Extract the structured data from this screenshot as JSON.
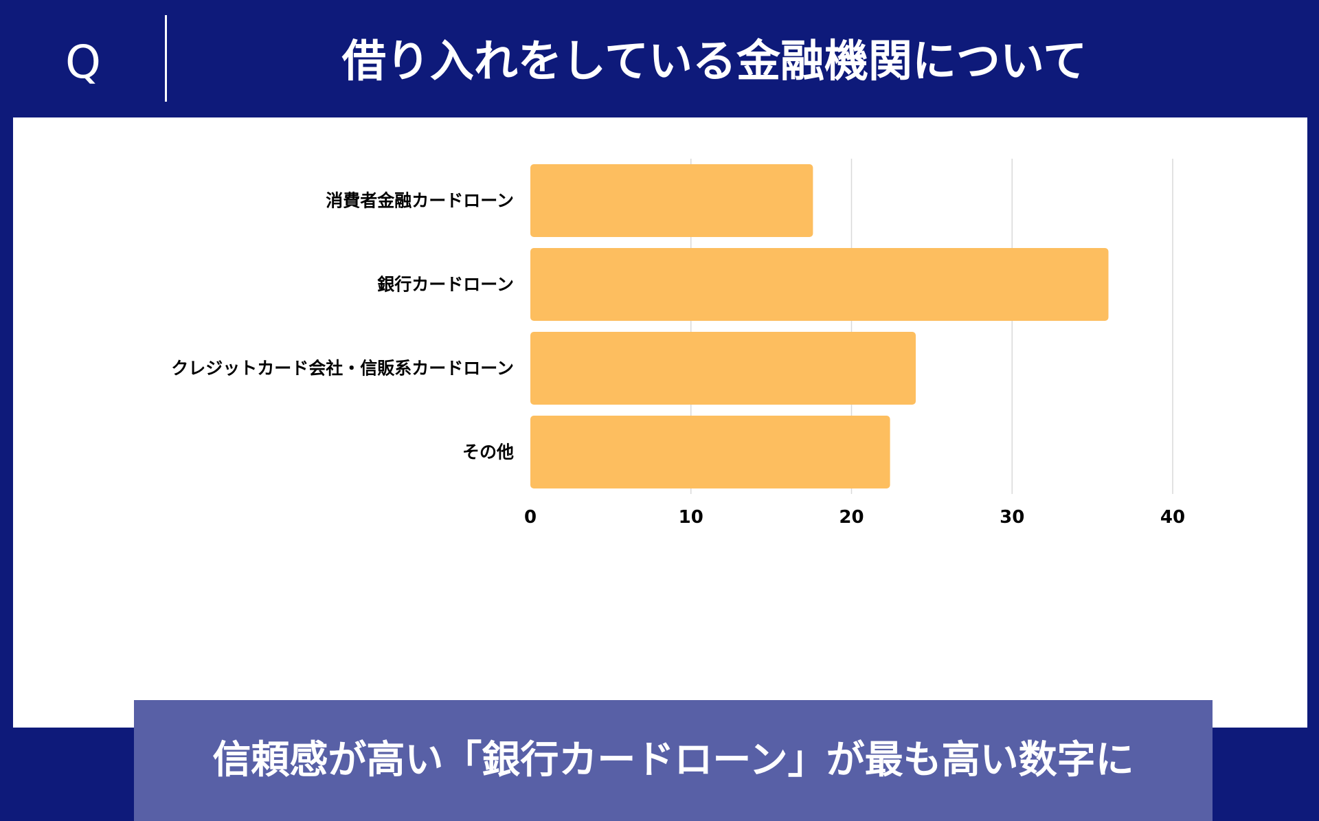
{
  "header": {
    "q_mark": "Q",
    "title": "借り入れをしている金融機関について"
  },
  "conclusion": {
    "text": "信頼感が高い「銀行カードローン」が最も高い数字に"
  },
  "colors": {
    "background": "#0e1a7a",
    "panel": "#ffffff",
    "bar": "#fdbe5f",
    "gridline": "#d9d9d9",
    "conclusion_bg": "#5860a6"
  },
  "chart_data": {
    "type": "bar",
    "orientation": "horizontal",
    "categories": [
      "消費者金融カードローン",
      "銀行カードローン",
      "クレジットカード会社・信販系カードローン",
      "その他"
    ],
    "values": [
      17.6,
      36,
      24,
      22.4
    ],
    "xlim": [
      0,
      40
    ],
    "xticks": [
      0,
      10,
      20,
      30,
      40
    ],
    "grid": true,
    "legend": "none",
    "title": "",
    "xlabel": "",
    "ylabel": ""
  }
}
